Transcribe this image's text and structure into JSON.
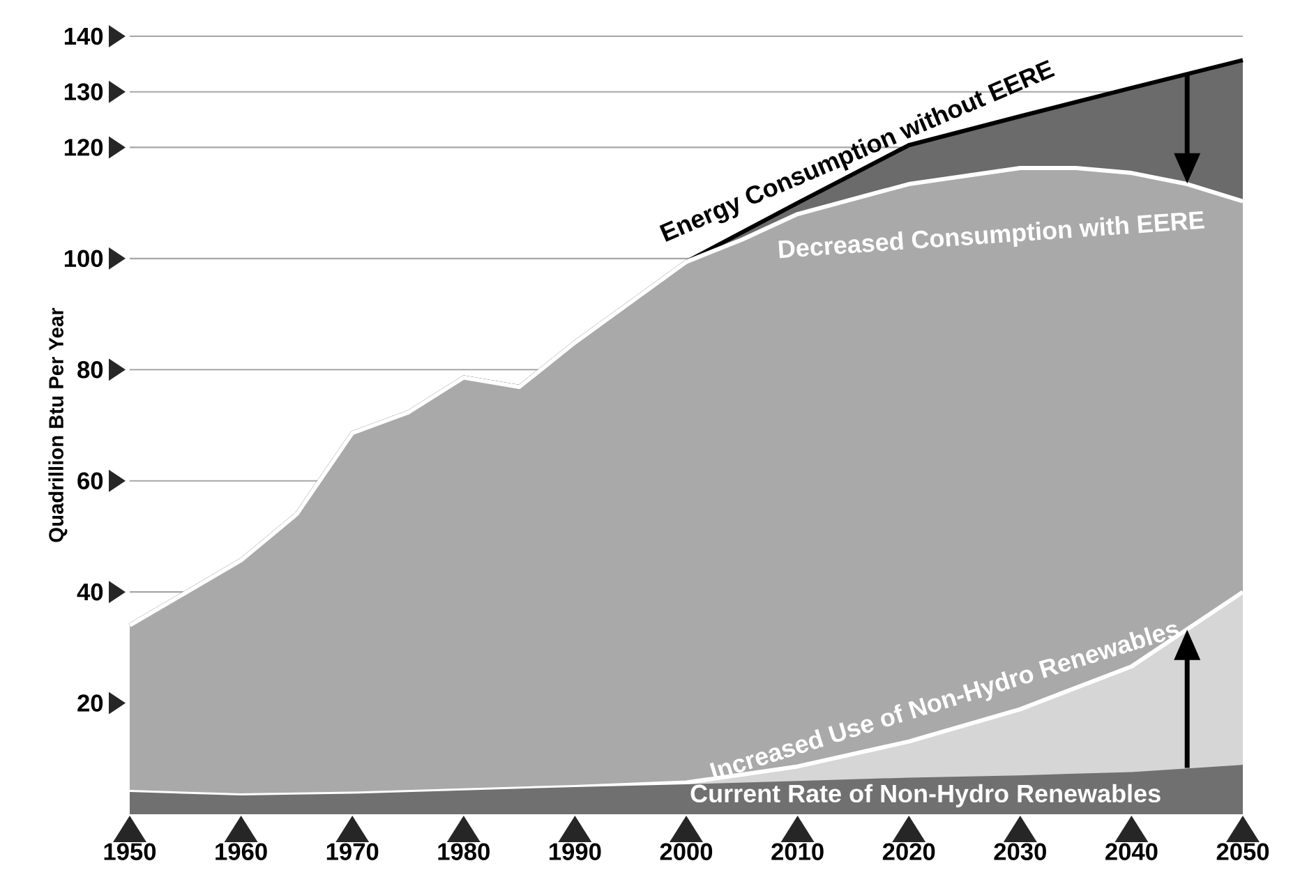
{
  "chart_data": {
    "type": "area",
    "ylabel": "Quadrillion Btu Per Year",
    "xlim": [
      1950,
      2050
    ],
    "xticks": [
      1950,
      1960,
      1970,
      1980,
      1990,
      2000,
      2010,
      2020,
      2030,
      2040,
      2050
    ],
    "ylim": [
      0,
      140
    ],
    "yticks": [
      20,
      40,
      60,
      80,
      100,
      120,
      130,
      140
    ],
    "grid": "y",
    "series": [
      {
        "name": "Energy Consumption without EERE",
        "color": "#6b6b6b",
        "x": [
          1950,
          1960,
          1965,
          1970,
          1975,
          1980,
          1985,
          1990,
          2000,
          2010,
          2020,
          2030,
          2040,
          2050
        ],
        "values": [
          34,
          45.7,
          54,
          68.6,
          72.3,
          78.6,
          76.9,
          84.9,
          99.4,
          110,
          120.4,
          125.6,
          130.7,
          135.7
        ]
      },
      {
        "name": "Decreased Consumption with EERE",
        "color": "#a9a9a9",
        "x": [
          1950,
          1960,
          1965,
          1970,
          1975,
          1980,
          1985,
          1990,
          2000,
          2005,
          2010,
          2020,
          2030,
          2035,
          2040,
          2045,
          2050
        ],
        "values": [
          34,
          45.7,
          54,
          68.6,
          72.3,
          78.6,
          76.9,
          84.9,
          99.4,
          103.4,
          108,
          113.4,
          116.3,
          116.3,
          115.4,
          113.4,
          110.3
        ]
      },
      {
        "name": "Increased Use of Non-Hydro Renewables",
        "color": "#d6d6d6",
        "x": [
          1950,
          1960,
          1970,
          1980,
          1990,
          2000,
          2010,
          2020,
          2030,
          2040,
          2050
        ],
        "values": [
          4,
          3.4,
          3.7,
          4.3,
          4.9,
          5.7,
          8.6,
          13.1,
          18.9,
          26.6,
          40
        ]
      },
      {
        "name": "Current Rate of Non-Hydro Renewables",
        "color": "#707070",
        "x": [
          1950,
          1960,
          1970,
          1980,
          1990,
          2000,
          2010,
          2020,
          2030,
          2040,
          2050
        ],
        "values": [
          4,
          3.4,
          3.7,
          4.3,
          4.9,
          5.4,
          6,
          6.6,
          7,
          7.6,
          8.9
        ]
      }
    ]
  }
}
